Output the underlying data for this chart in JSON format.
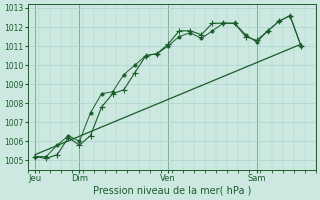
{
  "bg_color": "#cce8e0",
  "grid_color": "#aad4cc",
  "line_color": "#1a5c2a",
  "title": "Pression niveau de la mer( hPa )",
  "ylabel_values": [
    1005,
    1006,
    1007,
    1008,
    1009,
    1010,
    1011,
    1012,
    1013
  ],
  "ylim": [
    1004.5,
    1013.2
  ],
  "xlim": [
    0,
    78
  ],
  "xtick_positions": [
    2,
    14,
    38,
    62
  ],
  "xtick_labels": [
    "Jeu",
    "Dim",
    "Ven",
    "Sam"
  ],
  "vline_positions": [
    2,
    14,
    38,
    62
  ],
  "series1_x": [
    2,
    5,
    8,
    11,
    14,
    17,
    20,
    23,
    26,
    29,
    32,
    35,
    38,
    41,
    44,
    47,
    50,
    53,
    56,
    59,
    62,
    65,
    68,
    71,
    74
  ],
  "series1_y": [
    1005.2,
    1005.1,
    1005.3,
    1006.2,
    1005.8,
    1006.3,
    1007.8,
    1008.5,
    1008.7,
    1009.6,
    1010.5,
    1010.6,
    1011.1,
    1011.8,
    1011.8,
    1011.6,
    1012.2,
    1012.2,
    1012.2,
    1011.5,
    1011.3,
    1011.8,
    1012.3,
    1012.6,
    1011.0
  ],
  "series2_x": [
    2,
    5,
    8,
    11,
    14,
    17,
    20,
    23,
    26,
    29,
    32,
    35,
    38,
    41,
    44,
    47,
    50,
    53,
    56,
    59,
    62,
    65,
    68,
    71,
    74
  ],
  "series2_y": [
    1005.2,
    1005.2,
    1005.8,
    1006.3,
    1006.0,
    1007.5,
    1008.5,
    1008.6,
    1009.5,
    1010.0,
    1010.5,
    1010.6,
    1011.0,
    1011.5,
    1011.7,
    1011.4,
    1011.8,
    1012.2,
    1012.2,
    1011.6,
    1011.2,
    1011.8,
    1012.3,
    1012.6,
    1011.0
  ],
  "series3_x": [
    2,
    74
  ],
  "series3_y": [
    1005.3,
    1011.1
  ],
  "marker_size": 3
}
